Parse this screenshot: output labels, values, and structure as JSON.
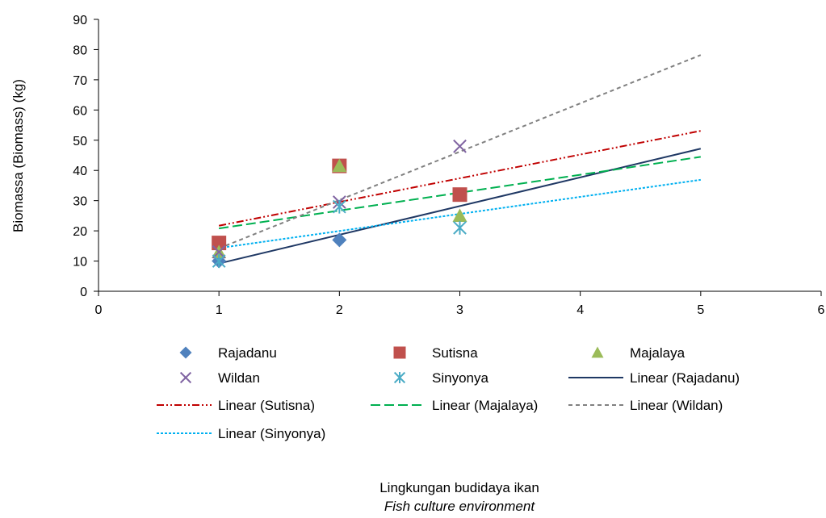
{
  "chart_data": {
    "type": "scatter",
    "xlabel": "Lingkungan budidaya ikan",
    "xlabel_translation": "Fish culture environment",
    "ylabel": "Biomassa (Biomass) (kg)",
    "xlim": [
      0,
      6
    ],
    "ylim": [
      0,
      90
    ],
    "x_ticks": [
      "0",
      "1",
      "2",
      "3",
      "4",
      "5",
      "6"
    ],
    "y_ticks": [
      "0",
      "10",
      "20",
      "30",
      "40",
      "50",
      "60",
      "70",
      "80",
      "90"
    ],
    "grid": false,
    "legend_position": "bottom",
    "series": [
      {
        "name": "Rajadanu",
        "marker": "diamond",
        "color": "#4F81BD",
        "x": [
          1,
          2
        ],
        "y": [
          10,
          17
        ]
      },
      {
        "name": "Sutisna",
        "marker": "square",
        "color": "#C0504D",
        "x": [
          1,
          2,
          3
        ],
        "y": [
          16,
          41.5,
          32
        ]
      },
      {
        "name": "Majalaya",
        "marker": "triangle",
        "color": "#9BBB59",
        "x": [
          1,
          2,
          3
        ],
        "y": [
          13,
          41.5,
          25
        ]
      },
      {
        "name": "Wildan",
        "marker": "x",
        "color": "#8064A2",
        "x": [
          1,
          2,
          3
        ],
        "y": [
          13,
          29.5,
          48
        ]
      },
      {
        "name": "Sinyonya",
        "marker": "star",
        "color": "#4BACC6",
        "x": [
          1,
          2,
          3
        ],
        "y": [
          10,
          28,
          21
        ]
      }
    ],
    "trendlines": [
      {
        "name": "Linear (Rajadanu)",
        "color": "#1F3864",
        "dash": "solid",
        "x": [
          1,
          5
        ],
        "y": [
          9.2,
          47.2
        ]
      },
      {
        "name": "Linear (Sutisna)",
        "color": "#C00000",
        "dash": "dashdotdot",
        "x": [
          1,
          5
        ],
        "y": [
          21.7,
          53.1
        ]
      },
      {
        "name": "Linear (Majalaya)",
        "color": "#00B050",
        "dash": "longdash",
        "x": [
          1,
          5
        ],
        "y": [
          20.8,
          44.5
        ]
      },
      {
        "name": "Linear (Wildan)",
        "color": "#808080",
        "dash": "shortdash",
        "x": [
          1,
          5
        ],
        "y": [
          14.2,
          78.2
        ]
      },
      {
        "name": "Linear (Sinyonya)",
        "color": "#00B0F0",
        "dash": "dot",
        "x": [
          1,
          5
        ],
        "y": [
          14.3,
          36.9
        ]
      }
    ],
    "legend": [
      "Rajadanu",
      "Sutisna",
      "Majalaya",
      "Wildan",
      "Sinyonya",
      "Linear (Rajadanu)",
      "Linear (Sutisna)",
      "Linear (Majalaya)",
      "Linear (Wildan)",
      "Linear (Sinyonya)"
    ]
  }
}
